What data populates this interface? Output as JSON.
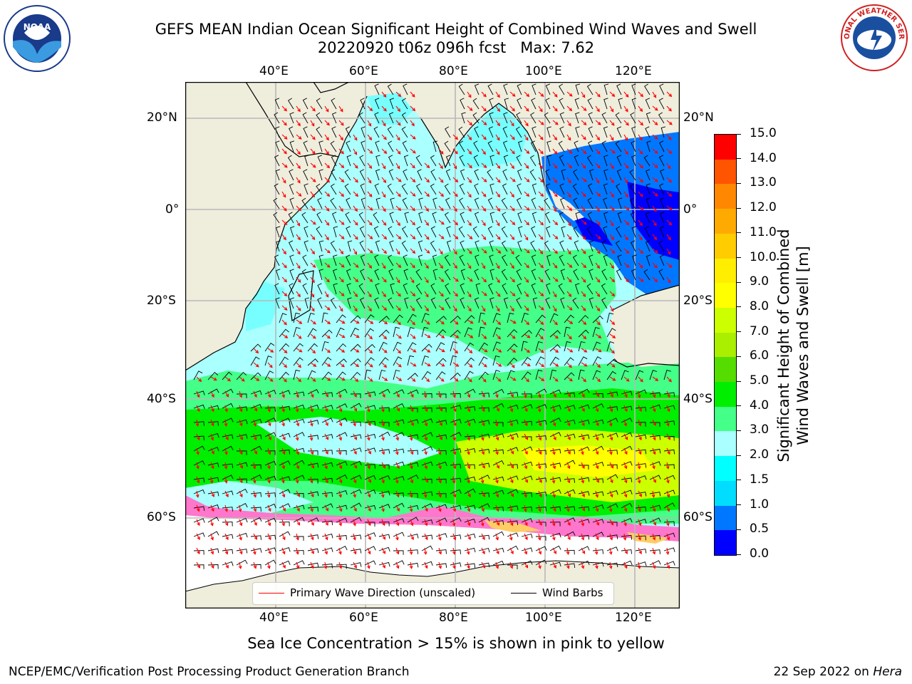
{
  "title": {
    "line1": "GEFS MEAN Indian Ocean Significant Height of Combined Wind Waves and Swell",
    "line2": "20220920 t06z 096h fcst   Max: 7.62"
  },
  "map": {
    "lon_ticks": [
      "40°E",
      "60°E",
      "80°E",
      "100°E",
      "120°E"
    ],
    "lat_ticks": [
      "20°N",
      "0°",
      "20°S",
      "40°S",
      "60°S"
    ],
    "legend": {
      "wave_label": "Primary Wave Direction (unscaled)",
      "wave_color": "#ff0000",
      "barb_label": "Wind Barbs",
      "barb_color": "#000000"
    },
    "colors": {
      "land": "#efeddc",
      "ice_free_white": "#ffffff"
    }
  },
  "colorbar": {
    "label_line1": "Significant Height of Combined",
    "label_line2": "Wind Waves and Swell [m]",
    "ticks": [
      "0.0",
      "0.5",
      "1.0",
      "1.5",
      "2.0",
      "3.0",
      "4.0",
      "5.0",
      "6.0",
      "7.0",
      "8.0",
      "9.0",
      "10.0",
      "11.0",
      "12.0",
      "13.0",
      "14.0",
      "15.0"
    ],
    "colors": [
      "#0000ff",
      "#0077ff",
      "#00ddff",
      "#00ffff",
      "#aaffff",
      "#44ff88",
      "#00ee00",
      "#55dd00",
      "#aaee00",
      "#ccff00",
      "#ffff00",
      "#ffee00",
      "#ffcc00",
      "#ffaa00",
      "#ff8800",
      "#ff5500",
      "#ff0000"
    ]
  },
  "footer": {
    "note": "Sea Ice Concentration > 15% is shown in pink to yellow",
    "credit": "NCEP/EMC/Verification Post Processing Product Generation Branch",
    "date": "22 Sep 2022 on ",
    "host": "Hera"
  },
  "logos": {
    "noaa_text": "NOAA",
    "nws_text": "NATIONAL WEATHER SERVICE"
  }
}
